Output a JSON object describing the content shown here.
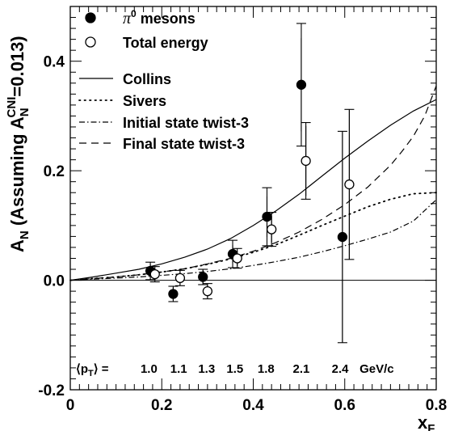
{
  "chart_data": {
    "type": "scatter",
    "xlabel": "x",
    "xlabel_sub": "F",
    "ylabel_prefix": "A",
    "ylabel_prefix_sub": "N",
    "ylabel_mid": " (Assuming A",
    "ylabel_mid_sub": "N",
    "ylabel_mid_sup": "CNI",
    "ylabel_suffix": "=0.013)",
    "xlim": [
      0,
      0.8
    ],
    "ylim": [
      -0.2,
      0.5
    ],
    "x_ticks": [
      "0",
      "0.2",
      "0.4",
      "0.6",
      "0.8"
    ],
    "y_ticks": [
      "-0.2",
      "0.0",
      "0.2",
      "0.4"
    ],
    "x_tick_values": [
      0,
      0.2,
      0.4,
      0.6,
      0.8
    ],
    "y_tick_values": [
      -0.2,
      0.0,
      0.2,
      0.4
    ],
    "zero_line": true,
    "series": [
      {
        "name": "π⁰ mesons",
        "name_main": "π",
        "name_sup": "0",
        "name_rest": " mesons",
        "marker": "filled-circle",
        "points": [
          {
            "x": 0.175,
            "y": 0.017,
            "err": 0.012,
            "syserr": 0.016
          },
          {
            "x": 0.225,
            "y": -0.025,
            "err": 0.012,
            "syserr": 0.014
          },
          {
            "x": 0.29,
            "y": 0.006,
            "err": 0.012,
            "syserr": 0.014
          },
          {
            "x": 0.355,
            "y": 0.048,
            "err": 0.016,
            "syserr": 0.025
          },
          {
            "x": 0.43,
            "y": 0.116,
            "err": 0.037,
            "syserr": 0.053
          },
          {
            "x": 0.505,
            "y": 0.357,
            "err": 0.085,
            "syserr": 0.112
          },
          {
            "x": 0.595,
            "y": 0.079,
            "err": 0.193,
            "syserr": 0.193
          }
        ]
      },
      {
        "name": "Total energy",
        "marker": "open-circle",
        "points": [
          {
            "x": 0.185,
            "y": 0.011,
            "err": 0.011,
            "syserr": 0.014
          },
          {
            "x": 0.24,
            "y": 0.004,
            "err": 0.012,
            "syserr": 0.014
          },
          {
            "x": 0.3,
            "y": -0.02,
            "err": 0.012,
            "syserr": 0.014
          },
          {
            "x": 0.365,
            "y": 0.04,
            "err": 0.014,
            "syserr": 0.018
          },
          {
            "x": 0.44,
            "y": 0.093,
            "err": 0.024,
            "syserr": 0.031
          },
          {
            "x": 0.515,
            "y": 0.218,
            "err": 0.064,
            "syserr": 0.07
          },
          {
            "x": 0.61,
            "y": 0.175,
            "err": 0.137,
            "syserr": 0.137
          }
        ]
      }
    ],
    "curves": [
      {
        "name": "Collins",
        "style": "solid",
        "x": [
          0,
          0.05,
          0.1,
          0.15,
          0.2,
          0.25,
          0.3,
          0.35,
          0.4,
          0.45,
          0.5,
          0.55,
          0.6,
          0.65,
          0.7,
          0.75,
          0.8
        ],
        "y": [
          0,
          0.006,
          0.013,
          0.02,
          0.03,
          0.042,
          0.057,
          0.076,
          0.1,
          0.127,
          0.157,
          0.19,
          0.223,
          0.254,
          0.283,
          0.309,
          0.33
        ]
      },
      {
        "name": "Sivers",
        "style": "dotted",
        "x": [
          0,
          0.05,
          0.1,
          0.15,
          0.2,
          0.25,
          0.3,
          0.35,
          0.4,
          0.45,
          0.5,
          0.55,
          0.6,
          0.65,
          0.7,
          0.75,
          0.8
        ],
        "y": [
          0,
          0.003,
          0.006,
          0.01,
          0.015,
          0.021,
          0.029,
          0.039,
          0.051,
          0.065,
          0.082,
          0.1,
          0.117,
          0.134,
          0.148,
          0.158,
          0.16
        ]
      },
      {
        "name": "Initial state twist-3",
        "style": "dashdot",
        "x": [
          0,
          0.05,
          0.1,
          0.15,
          0.2,
          0.25,
          0.3,
          0.35,
          0.4,
          0.45,
          0.5,
          0.55,
          0.6,
          0.65,
          0.7,
          0.75,
          0.8
        ],
        "y": [
          0,
          0.002,
          0.004,
          0.006,
          0.009,
          0.012,
          0.016,
          0.021,
          0.027,
          0.034,
          0.042,
          0.052,
          0.063,
          0.075,
          0.088,
          0.108,
          0.147
        ]
      },
      {
        "name": "Final state twist-3",
        "style": "dashed",
        "x": [
          0,
          0.05,
          0.1,
          0.15,
          0.2,
          0.25,
          0.3,
          0.35,
          0.4,
          0.45,
          0.5,
          0.55,
          0.6,
          0.65,
          0.7,
          0.725,
          0.75,
          0.775,
          0.8
        ],
        "y": [
          0,
          0.003,
          0.006,
          0.01,
          0.015,
          0.021,
          0.03,
          0.04,
          0.053,
          0.069,
          0.088,
          0.111,
          0.138,
          0.17,
          0.21,
          0.235,
          0.263,
          0.3,
          0.355
        ]
      }
    ],
    "pt_label": "⟨p",
    "pt_label_sub": "T",
    "pt_label_end": "⟩ =",
    "pt_values": [
      "1.0",
      "1.1",
      "1.3",
      "1.5",
      "1.8",
      "2.1",
      "2.4"
    ],
    "pt_value_x": [
      0.172,
      0.237,
      0.298,
      0.36,
      0.428,
      0.505,
      0.59
    ],
    "pt_unit": "GeV/c",
    "legend_position": "top-left",
    "grid": false
  }
}
